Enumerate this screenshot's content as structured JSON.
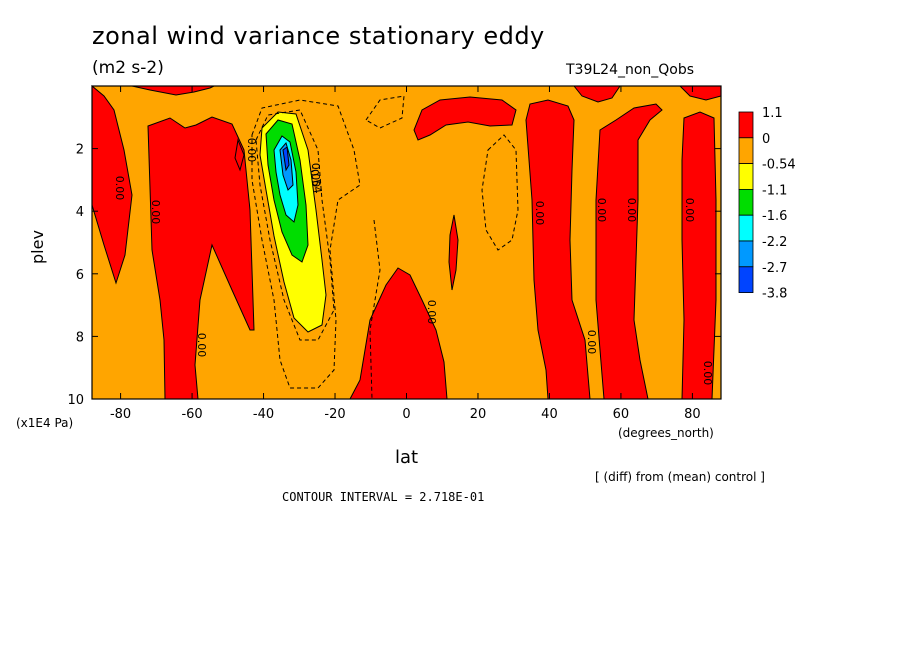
{
  "chart_data": {
    "type": "contour",
    "title": "zonal wind variance stationary eddy",
    "units": "(m2 s-2)",
    "run_label": "T39L24_non_Qobs",
    "xlabel": "lat",
    "xunit": "(degrees_north)",
    "ylabel": "plev",
    "yunit": "(x1E4 Pa)",
    "xlim": [
      -88,
      88
    ],
    "ylim": [
      10,
      0
    ],
    "x_ticks": [
      -80,
      -60,
      -40,
      -20,
      0,
      20,
      40,
      60,
      80
    ],
    "x_tick_labels": [
      "-80",
      "-60",
      "-40",
      "-20",
      "0",
      "20",
      "40",
      "60",
      "80"
    ],
    "y_ticks": [
      2,
      4,
      6,
      8,
      10
    ],
    "y_tick_labels": [
      "2",
      "4",
      "6",
      "8",
      "10"
    ],
    "contour_labels": [
      "0.00",
      "0.00",
      "0.00",
      "0.00",
      "0.00",
      "0.00",
      "0.00",
      "0.00",
      "0.00",
      "0.00",
      "0.00",
      "0.00",
      "-0.54"
    ],
    "colorbar": {
      "labels": [
        "1.1",
        "0",
        "-0.54",
        "-1.1",
        "-1.6",
        "-2.2",
        "-2.7",
        "-3.8"
      ],
      "colors": [
        "#ff0000",
        "#ffa500",
        "#ffff00",
        "#00dd00",
        "#00ffff",
        "#0099ff",
        "#0044ff"
      ]
    },
    "notes": [
      "[ (diff) from (mean) control ]",
      "CONTOUR INTERVAL = 2.718E-01"
    ],
    "grid": false
  }
}
